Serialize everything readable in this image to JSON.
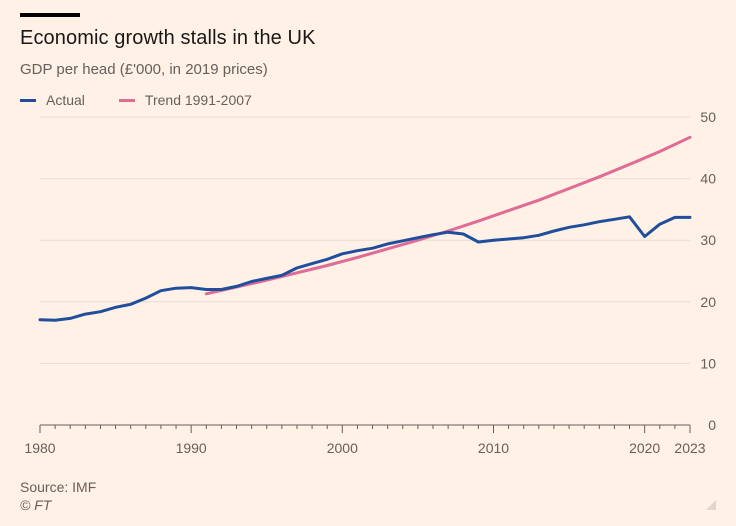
{
  "colors": {
    "background": "#fff1e5",
    "actual": "#1f4e9c",
    "trend": "#e06b95",
    "grid": "#e9ddd2",
    "axis": "#66605c"
  },
  "chart_data": {
    "type": "line",
    "title": "Economic growth stalls in the UK",
    "subtitle": "GDP per head (£'000, in 2019 prices)",
    "legend_position": "top-left",
    "grid": true,
    "xlim": [
      1980,
      2023
    ],
    "ylim": [
      0,
      50
    ],
    "x_ticks": [
      1980,
      1990,
      2000,
      2010,
      2020,
      2023
    ],
    "y_ticks": [
      0,
      10,
      20,
      30,
      40,
      50
    ],
    "series": [
      {
        "name": "Actual",
        "color": "#1f4e9c",
        "x": [
          1980,
          1981,
          1982,
          1983,
          1984,
          1985,
          1986,
          1987,
          1988,
          1989,
          1990,
          1991,
          1992,
          1993,
          1994,
          1995,
          1996,
          1997,
          1998,
          1999,
          2000,
          2001,
          2002,
          2003,
          2004,
          2005,
          2006,
          2007,
          2008,
          2009,
          2010,
          2011,
          2012,
          2013,
          2014,
          2015,
          2016,
          2017,
          2018,
          2019,
          2020,
          2021,
          2022,
          2023
        ],
        "values": [
          17.1,
          17.0,
          17.3,
          18.0,
          18.4,
          19.1,
          19.6,
          20.6,
          21.8,
          22.2,
          22.3,
          22.0,
          22.0,
          22.5,
          23.3,
          23.8,
          24.3,
          25.5,
          26.2,
          26.9,
          27.8,
          28.3,
          28.7,
          29.4,
          29.9,
          30.4,
          30.9,
          31.3,
          31.0,
          29.7,
          30.0,
          30.2,
          30.4,
          30.8,
          31.5,
          32.1,
          32.5,
          33.0,
          33.4,
          33.8,
          30.6,
          32.6,
          33.7,
          33.7
        ]
      },
      {
        "name": "Trend 1991-2007",
        "color": "#e06b95",
        "x": [
          1991,
          1993,
          1995,
          1997,
          1999,
          2001,
          2003,
          2005,
          2007,
          2009,
          2011,
          2013,
          2015,
          2017,
          2019,
          2021,
          2023
        ],
        "values": [
          21.3,
          22.4,
          23.5,
          24.7,
          25.9,
          27.2,
          28.6,
          30.0,
          31.5,
          33.1,
          34.8,
          36.5,
          38.4,
          40.3,
          42.3,
          44.4,
          46.7
        ]
      }
    ]
  },
  "footer": {
    "source": "Source: IMF",
    "copyright": "© FT"
  }
}
